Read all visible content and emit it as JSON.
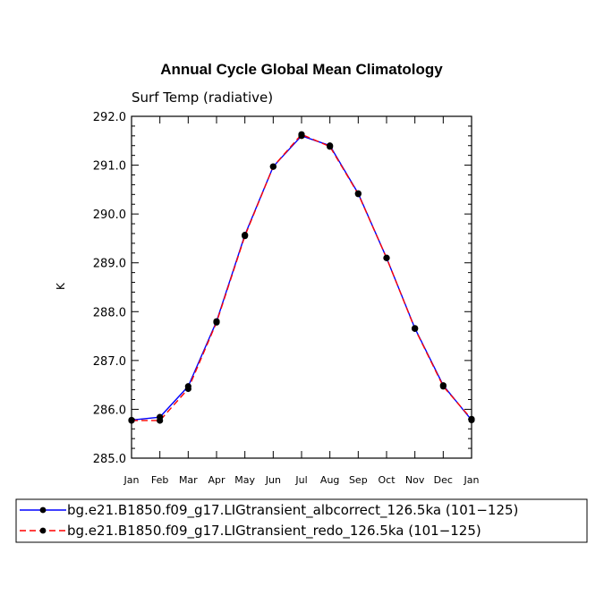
{
  "chart_data": {
    "type": "line",
    "title": "Annual Cycle Global Mean Climatology",
    "subtitle": "Surf Temp (radiative)",
    "xlabel": "",
    "ylabel": "K",
    "categories": [
      "Jan",
      "Feb",
      "Mar",
      "Apr",
      "May",
      "Jun",
      "Jul",
      "Aug",
      "Sep",
      "Oct",
      "Nov",
      "Dec",
      "Jan"
    ],
    "ylim": [
      285.0,
      292.0
    ],
    "yticks": [
      "285.0",
      "286.0",
      "287.0",
      "288.0",
      "289.0",
      "290.0",
      "291.0",
      "292.0"
    ],
    "series": [
      {
        "name": "bg.e21.B1850.f09_g17.LIGtransient_albcorrect_126.5ka (101−125)",
        "color": "#0000ff",
        "dash": "solid",
        "marker": "filled-circle",
        "values": [
          285.78,
          285.84,
          286.47,
          287.8,
          289.57,
          290.97,
          291.6,
          291.4,
          290.42,
          289.1,
          287.66,
          286.49,
          285.78
        ]
      },
      {
        "name": "bg.e21.B1850.f09_g17.LIGtransient_redo_126.5ka (101−125)",
        "color": "#ff0000",
        "dash": "dashed",
        "marker": "filled-circle",
        "values": [
          285.77,
          285.77,
          286.42,
          287.78,
          289.55,
          290.97,
          291.63,
          291.38,
          290.41,
          289.1,
          287.65,
          286.47,
          285.8
        ]
      }
    ],
    "legend_position": "bottom"
  }
}
